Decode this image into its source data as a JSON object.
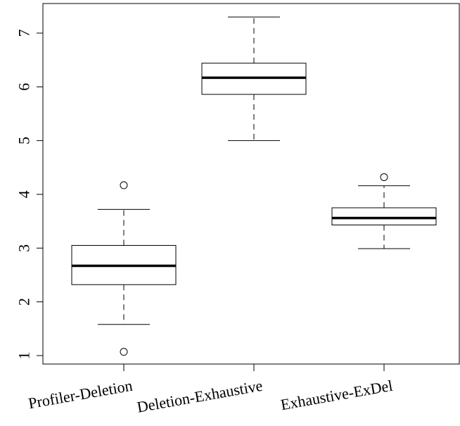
{
  "chart_data": {
    "type": "boxplot",
    "title": "",
    "xlabel": "",
    "ylabel": "",
    "ylim": [
      0.85,
      7.55
    ],
    "y_ticks": [
      1,
      2,
      3,
      4,
      5,
      6,
      7
    ],
    "categories": [
      "Profiler-Deletion",
      "Deletion-Exhaustive",
      "Exhaustive-ExDel"
    ],
    "boxes": [
      {
        "category": "Profiler-Deletion",
        "whisker_low": 1.58,
        "q1": 2.32,
        "median": 2.67,
        "q3": 3.05,
        "whisker_high": 3.72,
        "outliers": [
          1.07,
          4.17
        ]
      },
      {
        "category": "Deletion-Exhaustive",
        "whisker_low": 5.0,
        "q1": 5.86,
        "median": 6.17,
        "q3": 6.44,
        "whisker_high": 7.3,
        "outliers": []
      },
      {
        "category": "Exhaustive-ExDel",
        "whisker_low": 2.99,
        "q1": 3.43,
        "median": 3.56,
        "q3": 3.75,
        "whisker_high": 4.16,
        "outliers": [
          4.32
        ]
      }
    ],
    "grid": false,
    "legend": "none"
  }
}
